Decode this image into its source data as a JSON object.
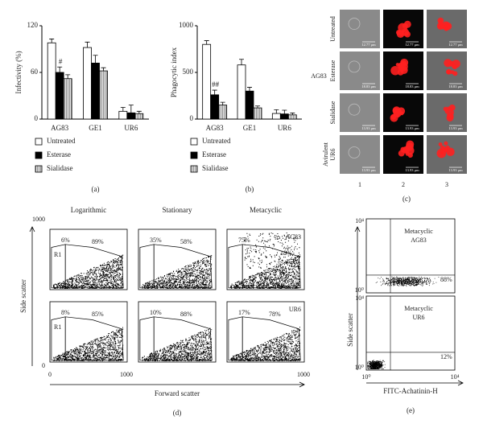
{
  "chart_data": [
    {
      "type": "bar",
      "y_label": "Infectivity (%)",
      "categories": [
        "AG83",
        "GE1",
        "UR6"
      ],
      "series": [
        {
          "name": "Untreated",
          "color": "#ffffff",
          "values": [
            98,
            92,
            10
          ],
          "errors": [
            5,
            7,
            5
          ]
        },
        {
          "name": "Esterase",
          "color": "#000000",
          "values": [
            60,
            72,
            8
          ],
          "errors": [
            7,
            10,
            10
          ]
        },
        {
          "name": "Sialidase",
          "color": "#888888",
          "pattern": "vertical-lines",
          "values": [
            52,
            62,
            7
          ],
          "errors": [
            5,
            4,
            3
          ]
        }
      ],
      "ylim": [
        0,
        120
      ],
      "yticks": [
        0,
        60,
        120
      ],
      "legend": "bottom",
      "annotation": "#",
      "panel_label": "(a)"
    },
    {
      "type": "bar",
      "y_label": "Phagocytic index",
      "categories": [
        "AG83",
        "GE1",
        "UR6"
      ],
      "series": [
        {
          "name": "Untreated",
          "color": "#ffffff",
          "values": [
            800,
            580,
            60
          ],
          "errors": [
            40,
            60,
            40
          ]
        },
        {
          "name": "Esterase",
          "color": "#000000",
          "values": [
            260,
            300,
            55
          ],
          "errors": [
            50,
            40,
            40
          ]
        },
        {
          "name": "Sialidase",
          "color": "#888888",
          "pattern": "vertical-lines",
          "values": [
            150,
            120,
            45
          ],
          "errors": [
            30,
            20,
            20
          ]
        }
      ],
      "ylim": [
        0,
        1000
      ],
      "yticks": [
        0,
        500,
        1000
      ],
      "legend": "bottom",
      "annotation": "##",
      "panel_label": "(b)"
    }
  ],
  "microscopy": {
    "row_labels": [
      [
        "Untreated"
      ],
      [
        "Esterase"
      ],
      [
        "Sialidase"
      ],
      [
        "Avirulent",
        "UR6"
      ]
    ],
    "group_label": "AG83",
    "column_labels": [
      "1",
      "2",
      "3"
    ],
    "scale_labels": [
      "12.77 μm",
      "18.83 μm",
      "13.93 μm",
      "13.93 μm"
    ],
    "panel_label": "(c)"
  },
  "flow_cytometry": {
    "columns": [
      "Logarithmic",
      "Stationary",
      "Metacyclic"
    ],
    "row_labels": [
      "AG83",
      "UR6"
    ],
    "gate_label": "R1",
    "percentages": [
      [
        "6%",
        "89%"
      ],
      [
        "35%",
        "58%"
      ],
      [
        "75%",
        "18%"
      ],
      [
        "8%",
        "85%"
      ],
      [
        "10%",
        "88%"
      ],
      [
        "17%",
        "78%"
      ]
    ],
    "x_label": "Forward scatter",
    "y_label": "Side scatter",
    "ticks": [
      "0",
      "1000"
    ],
    "panel_label": "(d)"
  },
  "binding": {
    "plots": [
      {
        "title": [
          "Metacyclic",
          "AG83"
        ],
        "percentage": "88%"
      },
      {
        "title": [
          "Metacyclic",
          "UR6"
        ],
        "percentage": "12%"
      }
    ],
    "y_ticks": [
      "10⁴",
      "10⁰"
    ],
    "x_ticks": [
      "10⁰",
      "10⁴"
    ],
    "x_label": "FITC-Achatinin-H",
    "y_label": "Side scatter",
    "panel_label": "(e)"
  }
}
